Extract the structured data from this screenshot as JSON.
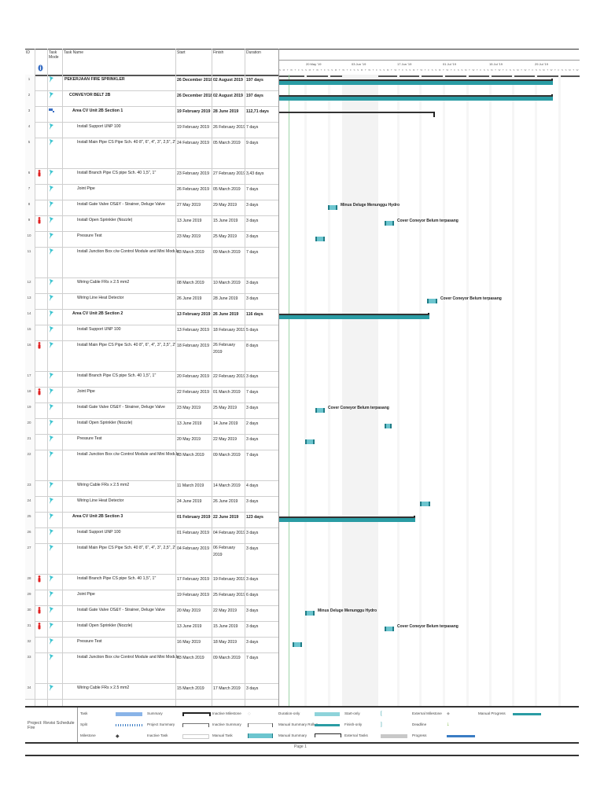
{
  "header": {
    "id": "ID",
    "indicators": "",
    "task_mode": "Task Mode",
    "task_name": "Task Name",
    "start": "Start",
    "finish": "Finish",
    "duration": "Duration"
  },
  "timescale": {
    "weeks": [
      "20 May '19",
      "03 Jun '19",
      "17 Jun '19",
      "01 Jul '19",
      "15 Jul '19",
      "29 Jul '19"
    ],
    "days": "S M T W T F S S M T W T F S S M T W T F S S M T W T F S S M T W T F S S M T W T F S S M T W T F S S M T W T F S S M T W T F S S M T W T F S S M T W T F S S M T W T F S S M T W T F S S M T W T F S S M T W T F S"
  },
  "rows": [
    {
      "id": "1",
      "name": "PEKERJAAN FIRE SPRINKLER",
      "start": "26 December 2018",
      "finish": "02 August 2019",
      "duration": "197 days",
      "level": 0,
      "bold": true,
      "mode": "auto",
      "flag": false
    },
    {
      "id": "2",
      "name": "CONVEYOR BELT 2B",
      "start": "26 December 2018",
      "finish": "02 August 2019",
      "duration": "197 days",
      "level": 1,
      "bold": true,
      "mode": "auto",
      "flag": false
    },
    {
      "id": "3",
      "name": "Area CV Unit 2B Section 1",
      "start": "19 February 2019",
      "finish": "28 June 2019",
      "duration": "112,71 days",
      "level": 2,
      "bold": true,
      "mode": "manual",
      "flag": false
    },
    {
      "id": "4",
      "name": "Install Support UNP 100",
      "start": "19 February 2019",
      "finish": "26 February 2019",
      "duration": "7 days",
      "level": 3,
      "bold": false,
      "mode": "auto",
      "flag": false
    },
    {
      "id": "5",
      "name": "Install Main Pipe CS Pipe Sch. 40 8\", 6\", 4\", 3\", 2,5\", 2\"",
      "start": "24 February 2019",
      "finish": "05 March 2019",
      "duration": "9 days",
      "level": 3,
      "bold": false,
      "mode": "auto",
      "flag": false
    },
    {
      "id": "6",
      "name": "Install Branch Pipe CS pipe Sch. 40 1,5\", 1\"",
      "start": "23 February 2019",
      "finish": "27 February 2019",
      "duration": "3,43 days",
      "level": 3,
      "bold": false,
      "mode": "auto",
      "flag": true
    },
    {
      "id": "7",
      "name": "Joint Pipe",
      "start": "26 February 2019",
      "finish": "05 March 2019",
      "duration": "7 days",
      "level": 3,
      "bold": false,
      "mode": "auto",
      "flag": false
    },
    {
      "id": "8",
      "name": "Install Gate Valve OS&Y - Strainer, Deluge Valve",
      "start": "27 May 2019",
      "finish": "29 May 2019",
      "duration": "3 days",
      "level": 3,
      "bold": false,
      "mode": "auto",
      "flag": false
    },
    {
      "id": "9",
      "name": "Install Open Sprinkler (Nozzle)",
      "start": "13 June 2019",
      "finish": "15 June 2019",
      "duration": "3 days",
      "level": 3,
      "bold": false,
      "mode": "auto",
      "flag": true
    },
    {
      "id": "10",
      "name": "Pressure Test",
      "start": "23 May 2019",
      "finish": "25 May 2019",
      "duration": "3 days",
      "level": 3,
      "bold": false,
      "mode": "auto",
      "flag": false
    },
    {
      "id": "11",
      "name": "Install Junction Box c/w Control Module and Mini Module",
      "start": "03 March 2019",
      "finish": "09 March 2019",
      "duration": "7 days",
      "level": 3,
      "bold": false,
      "mode": "auto",
      "flag": false
    },
    {
      "id": "12",
      "name": "Wiring Cable FRs x 2.5 mm2",
      "start": "08 March 2019",
      "finish": "10 March 2019",
      "duration": "3 days",
      "level": 3,
      "bold": false,
      "mode": "auto",
      "flag": false
    },
    {
      "id": "13",
      "name": "Wiring Line Heat Detector",
      "start": "26 June 2019",
      "finish": "28 June 2019",
      "duration": "3 days",
      "level": 3,
      "bold": false,
      "mode": "auto",
      "flag": false
    },
    {
      "id": "14",
      "name": "Area CV Unit 2B Section 2",
      "start": "13 February 2019",
      "finish": "26 June 2019",
      "duration": "116 days",
      "level": 2,
      "bold": true,
      "mode": "auto",
      "flag": false
    },
    {
      "id": "15",
      "name": "Install Support UNP 100",
      "start": "13 February 2019",
      "finish": "18 February 2019",
      "duration": "5 days",
      "level": 3,
      "bold": false,
      "mode": "auto",
      "flag": false
    },
    {
      "id": "16",
      "name": "Install Main Pipe CS Pipe Sch. 40 8\", 6\", 4\", 3\", 2,5\", 2\"",
      "start": "18 February 2019",
      "finish": "26 February 2019",
      "duration": "8 days",
      "level": 3,
      "bold": false,
      "mode": "auto",
      "flag": true
    },
    {
      "id": "17",
      "name": "Install Branch Pipe CS pipe Sch. 40 1,5\", 1\"",
      "start": "20 February 2019",
      "finish": "22 February 2019",
      "duration": "3 days",
      "level": 3,
      "bold": false,
      "mode": "auto",
      "flag": false
    },
    {
      "id": "18",
      "name": "Joint Pipe",
      "start": "22 February 2019",
      "finish": "01 March 2019",
      "duration": "7 days",
      "level": 3,
      "bold": false,
      "mode": "auto",
      "flag": true
    },
    {
      "id": "19",
      "name": "Install Gate Valve OS&Y - Strainer, Deluge Valve",
      "start": "23 May 2019",
      "finish": "25 May 2019",
      "duration": "3 days",
      "level": 3,
      "bold": false,
      "mode": "auto",
      "flag": false
    },
    {
      "id": "20",
      "name": "Install Open Sprinkler (Nozzle)",
      "start": "13 June 2019",
      "finish": "14 June 2019",
      "duration": "2 days",
      "level": 3,
      "bold": false,
      "mode": "auto",
      "flag": false
    },
    {
      "id": "21",
      "name": "Pressure Test",
      "start": "20 May 2019",
      "finish": "22 May 2019",
      "duration": "3 days",
      "level": 3,
      "bold": false,
      "mode": "auto",
      "flag": false
    },
    {
      "id": "22",
      "name": "Install Junction Box c/w Control Module and Mini Module",
      "start": "03 March 2019",
      "finish": "09 March 2019",
      "duration": "7 days",
      "level": 3,
      "bold": false,
      "mode": "auto",
      "flag": false
    },
    {
      "id": "23",
      "name": "Wiring Cable FRs x 2.5 mm2",
      "start": "11 March 2019",
      "finish": "14 March 2019",
      "duration": "4 days",
      "level": 3,
      "bold": false,
      "mode": "auto",
      "flag": false
    },
    {
      "id": "24",
      "name": "Wiring Line Heat Detector",
      "start": "24 June 2019",
      "finish": "26 June 2019",
      "duration": "3 days",
      "level": 3,
      "bold": false,
      "mode": "auto",
      "flag": false
    },
    {
      "id": "25",
      "name": "Area CV Unit 2B Section 3",
      "start": "01 February 2019",
      "finish": "22 June 2019",
      "duration": "123 days",
      "level": 2,
      "bold": true,
      "mode": "auto",
      "flag": false
    },
    {
      "id": "26",
      "name": "Install Support UNP 100",
      "start": "01 February 2019",
      "finish": "04 February 2019",
      "duration": "3 days",
      "level": 3,
      "bold": false,
      "mode": "auto",
      "flag": false
    },
    {
      "id": "27",
      "name": "Install Main Pipe CS Pipe Sch. 40 8\", 6\", 4\", 3\", 2,5\", 2\"",
      "start": "04 February 2019",
      "finish": "06 February 2019",
      "duration": "3 days",
      "level": 3,
      "bold": false,
      "mode": "auto",
      "flag": false
    },
    {
      "id": "28",
      "name": "Install Branch Pipe CS pipe Sch. 40 1,5\", 1\"",
      "start": "17 February 2019",
      "finish": "19 February 2019",
      "duration": "3 days",
      "level": 3,
      "bold": false,
      "mode": "auto",
      "flag": true
    },
    {
      "id": "29",
      "name": "Joint Pipe",
      "start": "19 February 2019",
      "finish": "25 February 2019",
      "duration": "6 days",
      "level": 3,
      "bold": false,
      "mode": "auto",
      "flag": false
    },
    {
      "id": "30",
      "name": "Install Gate Valve OS&Y - Strainer, Deluge Valve",
      "start": "20 May 2019",
      "finish": "22 May 2019",
      "duration": "3 days",
      "level": 3,
      "bold": false,
      "mode": "auto",
      "flag": true
    },
    {
      "id": "31",
      "name": "Install Open Sprinkler (Nozzle)",
      "start": "13 June 2019",
      "finish": "15 June 2019",
      "duration": "3 days",
      "level": 3,
      "bold": false,
      "mode": "auto",
      "flag": true
    },
    {
      "id": "32",
      "name": "Pressure Test",
      "start": "16 May 2019",
      "finish": "18 May 2019",
      "duration": "3 days",
      "level": 3,
      "bold": false,
      "mode": "auto",
      "flag": false
    },
    {
      "id": "33",
      "name": "Install Junction Box c/w Control Module and Mini Module",
      "start": "03 March 2019",
      "finish": "09 March 2019",
      "duration": "7 days",
      "level": 3,
      "bold": false,
      "mode": "auto",
      "flag": false
    },
    {
      "id": "34",
      "name": "Wiring Cable FRs x 2.5 mm2",
      "start": "15 March 2019",
      "finish": "17 March 2019",
      "duration": "3 days",
      "level": 3,
      "bold": false,
      "mode": "auto",
      "flag": false
    }
  ],
  "bar_labels": {
    "r8": "Minus Deluge Menunggu Hydro",
    "r9": "Cover Coneyor Belum terpasang",
    "r13": "Cover Coneyor Belum terpasang",
    "r19": "Cover Coneyor Belum terpasang",
    "r30": "Minus Deluge Menunggu Hydro",
    "r31": "Cover Coneyor Belum terpasang"
  },
  "legend": {
    "project": "Project: Revisi Schedule Fire",
    "items": [
      "Task",
      "Split",
      "Milestone",
      "Summary",
      "Project Summary",
      "Inactive Task",
      "Inactive Milestone",
      "Inactive Summary",
      "Manual Task",
      "Duration-only",
      "Manual Summary Rollup",
      "Manual Summary",
      "Start-only",
      "Finish-only",
      "External Tasks",
      "External Milestone",
      "Deadline",
      "Progress",
      "Manual Progress"
    ]
  },
  "footer": {
    "page": "Page 1"
  },
  "colors": {
    "task_bar": "#6cc5cf",
    "summary_bar": "#2a9ca4",
    "legend_task": "#8ab4e8",
    "progress": "#3a7cc4",
    "flag": "#e02020",
    "mode_pin": "#3cc4d0"
  }
}
